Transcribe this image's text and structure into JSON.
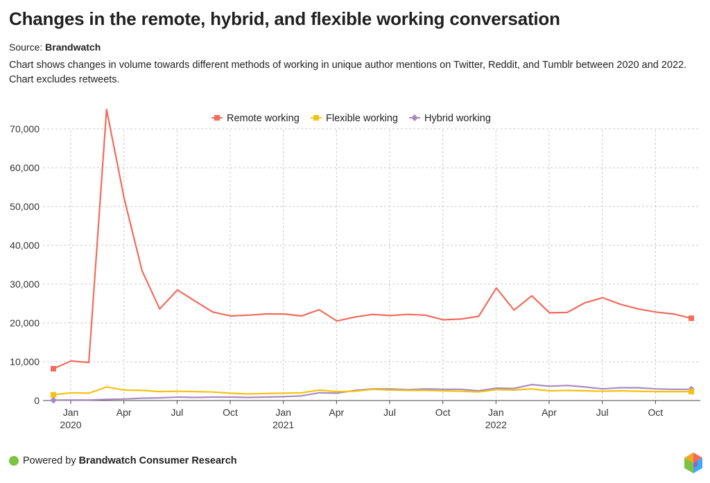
{
  "header": {
    "title": "Changes in the remote, hybrid, and flexible working conversation",
    "source_label": "Source:",
    "source_name": "Brandwatch",
    "description": "Chart shows changes in volume towards different methods of working in unique author mentions on Twitter, Reddit, and Tumblr between 2020 and 2022. Chart excludes retweets."
  },
  "footer": {
    "powered_by_label": "Powered by",
    "powered_by_name": "Brandwatch Consumer Research"
  },
  "chart_data": {
    "type": "line",
    "x_tick_labels": [
      {
        "index": 0,
        "label": "Jan",
        "sub": "2020"
      },
      {
        "index": 3,
        "label": "Apr",
        "sub": ""
      },
      {
        "index": 6,
        "label": "Jul",
        "sub": ""
      },
      {
        "index": 9,
        "label": "Oct",
        "sub": ""
      },
      {
        "index": 12,
        "label": "Jan",
        "sub": "2021"
      },
      {
        "index": 15,
        "label": "Apr",
        "sub": ""
      },
      {
        "index": 18,
        "label": "Jul",
        "sub": ""
      },
      {
        "index": 21,
        "label": "Oct",
        "sub": ""
      },
      {
        "index": 24,
        "label": "Jan",
        "sub": "2022"
      },
      {
        "index": 27,
        "label": "Apr",
        "sub": ""
      },
      {
        "index": 30,
        "label": "Jul",
        "sub": ""
      },
      {
        "index": 33,
        "label": "Oct",
        "sub": ""
      }
    ],
    "y_ticks": [
      0,
      10000,
      20000,
      30000,
      40000,
      50000,
      60000,
      70000
    ],
    "y_tick_labels": [
      "0",
      "10,000",
      "20,000",
      "30,000",
      "40,000",
      "50,000",
      "60,000",
      "70,000"
    ],
    "ylim": [
      0,
      75000
    ],
    "grid": true,
    "legend_position": "top-center",
    "series": [
      {
        "name": "Remote working",
        "color": "#f26b5b",
        "marker": "square",
        "values": [
          8200,
          10200,
          9800,
          75000,
          52000,
          33500,
          23600,
          28500,
          25600,
          22800,
          21800,
          22000,
          22300,
          22300,
          21800,
          23400,
          20500,
          21500,
          22200,
          21900,
          22200,
          22000,
          20800,
          21000,
          21700,
          29000,
          23300,
          27000,
          22600,
          22700,
          25200,
          26500,
          24800,
          23600,
          22800,
          22300,
          21200
        ]
      },
      {
        "name": "Flexible working",
        "color": "#f5c211",
        "marker": "square",
        "values": [
          1500,
          2000,
          1900,
          3500,
          2700,
          2600,
          2300,
          2400,
          2300,
          2200,
          1900,
          1700,
          1800,
          1900,
          2000,
          2700,
          2300,
          2400,
          2900,
          2700,
          2600,
          2600,
          2500,
          2400,
          2200,
          2800,
          2700,
          3000,
          2500,
          2600,
          2500,
          2400,
          2500,
          2400,
          2300,
          2300,
          2300
        ]
      },
      {
        "name": "Hybrid working",
        "color": "#a98bbf",
        "marker": "diamond",
        "values": [
          100,
          150,
          150,
          300,
          400,
          600,
          700,
          900,
          800,
          900,
          900,
          800,
          900,
          1000,
          1200,
          2000,
          1900,
          2600,
          3000,
          3000,
          2800,
          3000,
          2900,
          2900,
          2500,
          3200,
          3100,
          4100,
          3700,
          3900,
          3500,
          3000,
          3300,
          3300,
          3000,
          2900,
          2900
        ]
      }
    ]
  },
  "colors": {
    "grid": "#c8c8c8",
    "axis_text": "#333333",
    "footer_dot": "#7dc242"
  }
}
